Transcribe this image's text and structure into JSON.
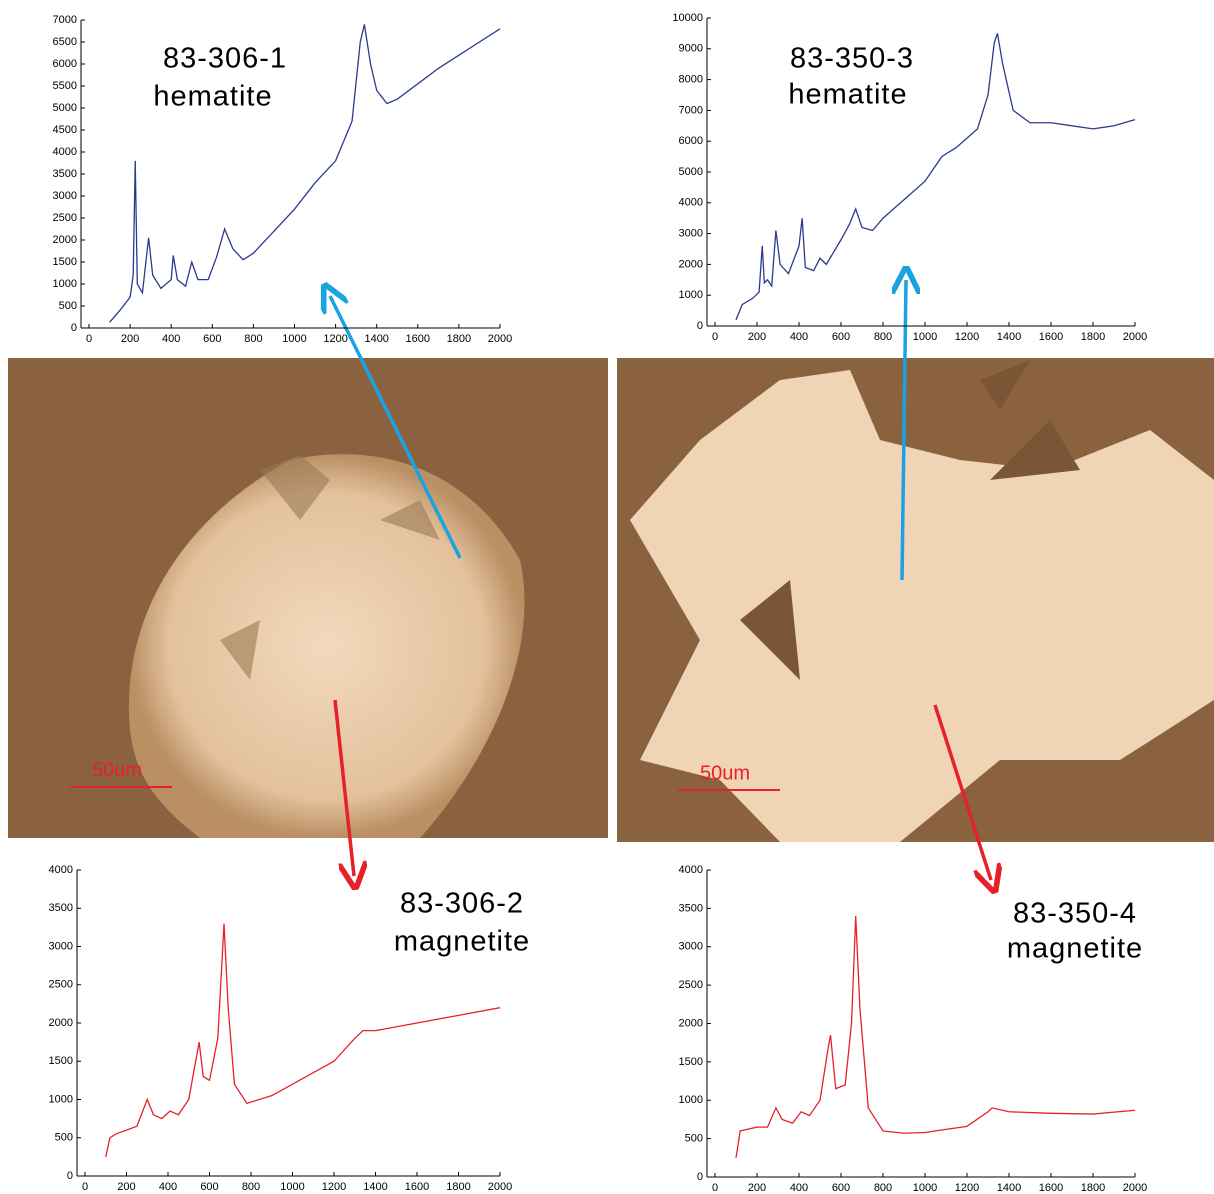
{
  "micrographs": [
    {
      "scale_label": "50um"
    },
    {
      "scale_label": "50um"
    }
  ],
  "chart_data": [
    {
      "type": "line",
      "annotations": [
        "83-306-1",
        "hematite"
      ],
      "x": [
        100,
        150,
        200,
        215,
        225,
        235,
        260,
        290,
        310,
        350,
        400,
        410,
        430,
        470,
        500,
        530,
        580,
        620,
        660,
        700,
        750,
        800,
        900,
        1000,
        1100,
        1200,
        1280,
        1320,
        1340,
        1370,
        1400,
        1450,
        1500,
        1600,
        1700,
        1800,
        1900,
        2000
      ],
      "series": [
        {
          "color": "#2b3a8f",
          "values": [
            130,
            400,
            700,
            1200,
            3800,
            1000,
            800,
            2050,
            1200,
            900,
            1100,
            1650,
            1100,
            950,
            1500,
            1100,
            1100,
            1600,
            2250,
            1800,
            1550,
            1700,
            2200,
            2700,
            3300,
            3800,
            4700,
            6500,
            6900,
            6000,
            5400,
            5100,
            5200,
            5550,
            5900,
            6200,
            6500,
            6800
          ]
        }
      ],
      "xlim": [
        0,
        2000
      ],
      "xticks": [
        0,
        200,
        400,
        600,
        800,
        1000,
        1200,
        1400,
        1600,
        1800,
        2000
      ],
      "ylim": [
        0,
        7000
      ],
      "yticks": [
        0,
        500,
        1000,
        1500,
        2000,
        2500,
        3000,
        3500,
        4000,
        4500,
        5000,
        5500,
        6000,
        6500,
        7000
      ]
    },
    {
      "type": "line",
      "annotations": [
        "83-350-3",
        "hematite"
      ],
      "x": [
        100,
        130,
        180,
        210,
        225,
        235,
        250,
        270,
        290,
        310,
        350,
        400,
        415,
        430,
        470,
        500,
        530,
        600,
        640,
        670,
        700,
        750,
        800,
        900,
        1000,
        1080,
        1150,
        1250,
        1300,
        1330,
        1345,
        1370,
        1420,
        1500,
        1600,
        1700,
        1800,
        1900,
        2000
      ],
      "series": [
        {
          "color": "#2b3a8f",
          "values": [
            200,
            700,
            900,
            1100,
            2600,
            1400,
            1500,
            1300,
            3100,
            2000,
            1700,
            2600,
            3500,
            1900,
            1800,
            2200,
            2000,
            2800,
            3300,
            3800,
            3200,
            3100,
            3500,
            4100,
            4700,
            5500,
            5800,
            6400,
            7500,
            9200,
            9500,
            8500,
            7000,
            6600,
            6600,
            6500,
            6400,
            6500,
            6700
          ]
        }
      ],
      "xlim": [
        0,
        2000
      ],
      "xticks": [
        0,
        200,
        400,
        600,
        800,
        1000,
        1200,
        1400,
        1600,
        1800,
        2000
      ],
      "ylim": [
        0,
        10000
      ],
      "yticks": [
        0,
        1000,
        2000,
        3000,
        4000,
        5000,
        6000,
        7000,
        8000,
        9000,
        10000
      ]
    },
    {
      "type": "line",
      "annotations": [
        "83-306-2",
        "magnetite"
      ],
      "x": [
        100,
        120,
        150,
        200,
        250,
        300,
        330,
        370,
        410,
        450,
        500,
        540,
        550,
        570,
        600,
        640,
        670,
        690,
        720,
        780,
        900,
        1000,
        1100,
        1200,
        1300,
        1340,
        1400,
        1600,
        1800,
        2000
      ],
      "series": [
        {
          "color": "#e8202a",
          "values": [
            250,
            500,
            550,
            600,
            650,
            1000,
            800,
            750,
            850,
            800,
            1000,
            1600,
            1750,
            1300,
            1250,
            1800,
            3300,
            2200,
            1200,
            950,
            1050,
            1200,
            1350,
            1500,
            1800,
            1900,
            1900,
            2000,
            2100,
            2200
          ]
        }
      ],
      "xlim": [
        0,
        2000
      ],
      "xticks": [
        0,
        200,
        400,
        600,
        800,
        1000,
        1200,
        1400,
        1600,
        1800,
        2000
      ],
      "ylim": [
        0,
        4000
      ],
      "yticks": [
        0,
        500,
        1000,
        1500,
        2000,
        2500,
        3000,
        3500,
        4000
      ]
    },
    {
      "type": "line",
      "annotations": [
        "83-350-4",
        "magnetite"
      ],
      "x": [
        100,
        120,
        200,
        250,
        290,
        320,
        370,
        410,
        450,
        500,
        540,
        550,
        575,
        620,
        650,
        670,
        690,
        730,
        800,
        900,
        1000,
        1100,
        1200,
        1300,
        1320,
        1400,
        1600,
        1800,
        2000
      ],
      "series": [
        {
          "color": "#e8202a",
          "values": [
            250,
            600,
            650,
            650,
            900,
            750,
            700,
            850,
            800,
            1000,
            1700,
            1850,
            1150,
            1200,
            2000,
            3400,
            2200,
            900,
            600,
            570,
            580,
            620,
            660,
            850,
            900,
            850,
            830,
            820,
            870
          ]
        }
      ],
      "xlim": [
        0,
        2000
      ],
      "xticks": [
        0,
        200,
        400,
        600,
        800,
        1000,
        1200,
        1400,
        1600,
        1800,
        2000
      ],
      "ylim": [
        0,
        4000
      ],
      "yticks": [
        0,
        500,
        1000,
        1500,
        2000,
        2500,
        3000,
        3500,
        4000
      ]
    }
  ]
}
